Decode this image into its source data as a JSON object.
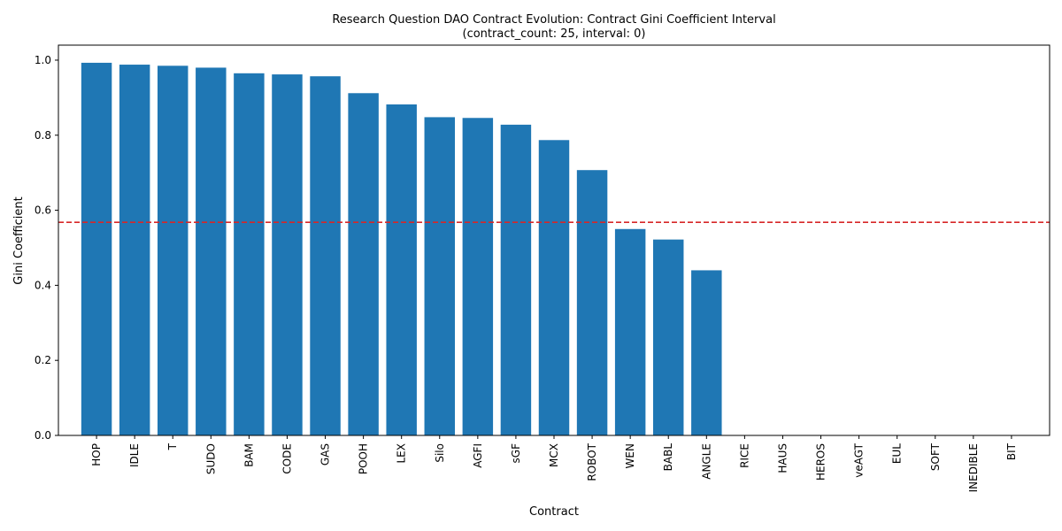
{
  "chart_data": {
    "type": "bar",
    "title": "Research Question DAO Contract Evolution: Contract Gini Coefficient Interval",
    "subtitle": "(contract_count: 25, interval: 0)",
    "xlabel": "Contract",
    "ylabel": "Gini Coefficient",
    "ylim": [
      0,
      1.04
    ],
    "yticks": [
      "0.0",
      "0.2",
      "0.4",
      "0.6",
      "0.8",
      "1.0"
    ],
    "ytick_values": [
      0,
      0.2,
      0.4,
      0.6,
      0.8,
      1.0
    ],
    "grid": false,
    "bar_color": "#1f77b4",
    "reference_line": {
      "value": 0.568,
      "color": "#d62728",
      "style": "dashed"
    },
    "categories": [
      "HOP",
      "IDLE",
      "T",
      "SUDO",
      "BAM",
      "CODE",
      "GAS",
      "POOH",
      "LEX",
      "Silo",
      "AGFI",
      "sGF",
      "MCX",
      "ROBOT",
      "WEN",
      "BABL",
      "ANGLE",
      "RICE",
      "HAUS",
      "HEROS",
      "veAGT",
      "EUL",
      "SOFT",
      "INEDIBLE",
      "BIT"
    ],
    "values": [
      0.993,
      0.988,
      0.985,
      0.98,
      0.965,
      0.962,
      0.957,
      0.912,
      0.882,
      0.848,
      0.846,
      0.828,
      0.787,
      0.707,
      0.55,
      0.522,
      0.44,
      0,
      0,
      0,
      0,
      0,
      0,
      0,
      0
    ]
  }
}
